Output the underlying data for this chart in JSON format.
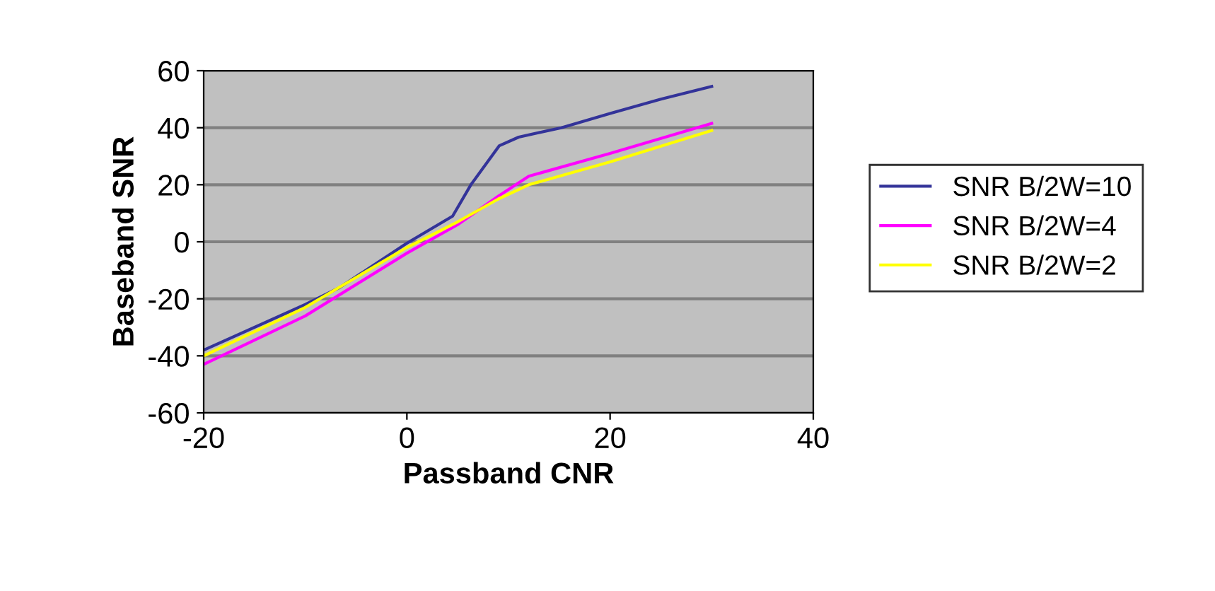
{
  "chart_data": {
    "type": "line",
    "xlabel": "Passband CNR",
    "ylabel": "Baseband SNR",
    "xlim": [
      -20,
      40
    ],
    "xticks": [
      -20,
      0,
      20,
      40
    ],
    "ylim": [
      -60,
      60
    ],
    "yticks": [
      -60,
      -40,
      -20,
      0,
      20,
      40,
      60
    ],
    "grid": "y",
    "legend": "right",
    "marker": "none",
    "line_style": "solid",
    "series": [
      {
        "name": "SNR B/2W=10",
        "color": "#333399",
        "x": [
          -20,
          -10,
          -6.6,
          0,
          4.5,
          6.3,
          9.1,
          11,
          15.2,
          20,
          25,
          30
        ],
        "values": [
          -38,
          -22,
          -16,
          -0.5,
          9,
          20,
          33.7,
          36.7,
          40,
          45,
          50,
          54.5
        ]
      },
      {
        "name": "SNR B/2W=4",
        "color": "#ff00ff",
        "x": [
          -20,
          -10,
          0,
          5,
          9,
          12,
          20,
          30
        ],
        "values": [
          -43,
          -26,
          -4,
          6,
          16,
          23,
          31,
          41.5
        ]
      },
      {
        "name": "SNR B/2W=2",
        "color": "#ffff00",
        "x": [
          -20,
          -10,
          0,
          5,
          9,
          12,
          20,
          30
        ],
        "values": [
          -40,
          -23,
          -2,
          7,
          15,
          20,
          28,
          39
        ]
      }
    ]
  }
}
